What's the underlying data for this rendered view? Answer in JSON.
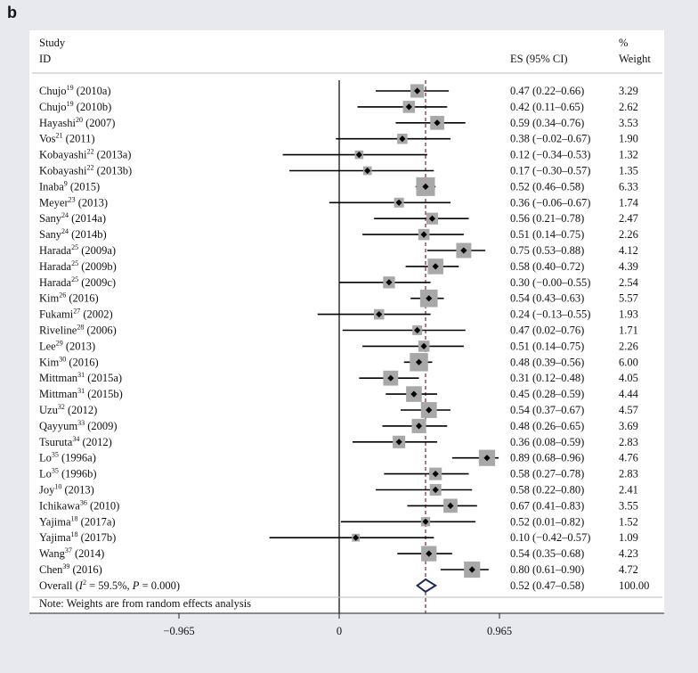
{
  "panel_label": "b",
  "chart_data": {
    "type": "forest",
    "header": {
      "study_line1": "Study",
      "study_line2": "ID",
      "es_label": "ES (95% CI)",
      "weight_line1": "%",
      "weight_line2": "Weight"
    },
    "studies": [
      {
        "name": "Chujo",
        "ref": "19",
        "year": " (2010a)",
        "es": 0.47,
        "lo": 0.22,
        "hi": 0.66,
        "es_text": "0.47 (0.22–0.66)",
        "weight": 3.29,
        "weight_text": "3.29"
      },
      {
        "name": "Chujo",
        "ref": "19",
        "year": " (2010b)",
        "es": 0.42,
        "lo": 0.11,
        "hi": 0.65,
        "es_text": "0.42 (0.11–0.65)",
        "weight": 2.62,
        "weight_text": "2.62"
      },
      {
        "name": "Hayashi",
        "ref": "20",
        "year": " (2007)",
        "es": 0.59,
        "lo": 0.34,
        "hi": 0.76,
        "es_text": "0.59 (0.34–0.76)",
        "weight": 3.53,
        "weight_text": "3.53"
      },
      {
        "name": "Vos",
        "ref": "21",
        "year": " (2011)",
        "es": 0.38,
        "lo": -0.02,
        "hi": 0.67,
        "es_text": "0.38 (−0.02–0.67)",
        "weight": 1.9,
        "weight_text": "1.90"
      },
      {
        "name": "Kobayashi",
        "ref": "22",
        "year": " (2013a)",
        "es": 0.12,
        "lo": -0.34,
        "hi": 0.53,
        "es_text": "0.12 (−0.34–0.53)",
        "weight": 1.32,
        "weight_text": "1.32"
      },
      {
        "name": "Kobayashi",
        "ref": "22",
        "year": " (2013b)",
        "es": 0.17,
        "lo": -0.3,
        "hi": 0.57,
        "es_text": "0.17 (−0.30–0.57)",
        "weight": 1.35,
        "weight_text": "1.35"
      },
      {
        "name": "Inaba",
        "ref": "9",
        "year": " (2015)",
        "es": 0.52,
        "lo": 0.46,
        "hi": 0.58,
        "es_text": "0.52 (0.46–0.58)",
        "weight": 6.33,
        "weight_text": "6.33"
      },
      {
        "name": "Meyer",
        "ref": "23",
        "year": " (2013)",
        "es": 0.36,
        "lo": -0.06,
        "hi": 0.67,
        "es_text": "0.36 (−0.06–0.67)",
        "weight": 1.74,
        "weight_text": "1.74"
      },
      {
        "name": "Sany",
        "ref": "24",
        "year": " (2014a)",
        "es": 0.56,
        "lo": 0.21,
        "hi": 0.78,
        "es_text": "0.56 (0.21–0.78)",
        "weight": 2.47,
        "weight_text": "2.47"
      },
      {
        "name": "Sany",
        "ref": "24",
        "year": " (2014b)",
        "es": 0.51,
        "lo": 0.14,
        "hi": 0.75,
        "es_text": "0.51 (0.14–0.75)",
        "weight": 2.26,
        "weight_text": "2.26"
      },
      {
        "name": "Harada",
        "ref": "25",
        "year": " (2009a)",
        "es": 0.75,
        "lo": 0.53,
        "hi": 0.88,
        "es_text": "0.75 (0.53–0.88)",
        "weight": 4.12,
        "weight_text": "4.12"
      },
      {
        "name": "Harada",
        "ref": "25",
        "year": " (2009b)",
        "es": 0.58,
        "lo": 0.4,
        "hi": 0.72,
        "es_text": "0.58 (0.40–0.72)",
        "weight": 4.39,
        "weight_text": "4.39"
      },
      {
        "name": "Harada",
        "ref": "25",
        "year": " (2009c)",
        "es": 0.3,
        "lo": 0.0,
        "hi": 0.55,
        "es_text": "0.30 (−0.00–0.55)",
        "weight": 2.54,
        "weight_text": "2.54"
      },
      {
        "name": "Kim",
        "ref": "26",
        "year": " (2016)",
        "es": 0.54,
        "lo": 0.43,
        "hi": 0.63,
        "es_text": "0.54 (0.43–0.63)",
        "weight": 5.57,
        "weight_text": "5.57"
      },
      {
        "name": "Fukami",
        "ref": "27",
        "year": " (2002)",
        "es": 0.24,
        "lo": -0.13,
        "hi": 0.55,
        "es_text": "0.24 (−0.13–0.55)",
        "weight": 1.93,
        "weight_text": "1.93"
      },
      {
        "name": "Riveline",
        "ref": "28",
        "year": " (2006)",
        "es": 0.47,
        "lo": 0.02,
        "hi": 0.76,
        "es_text": "0.47 (0.02–0.76)",
        "weight": 1.71,
        "weight_text": "1.71"
      },
      {
        "name": "Lee",
        "ref": "29",
        "year": " (2013)",
        "es": 0.51,
        "lo": 0.14,
        "hi": 0.75,
        "es_text": "0.51 (0.14–0.75)",
        "weight": 2.26,
        "weight_text": "2.26"
      },
      {
        "name": "Kim",
        "ref": "30",
        "year": " (2016)",
        "es": 0.48,
        "lo": 0.39,
        "hi": 0.56,
        "es_text": "0.48 (0.39–0.56)",
        "weight": 6.0,
        "weight_text": "6.00"
      },
      {
        "name": "Mittman",
        "ref": "31",
        "year": " (2015a)",
        "es": 0.31,
        "lo": 0.12,
        "hi": 0.48,
        "es_text": "0.31 (0.12–0.48)",
        "weight": 4.05,
        "weight_text": "4.05"
      },
      {
        "name": "Mittman",
        "ref": "31",
        "year": " (2015b)",
        "es": 0.45,
        "lo": 0.28,
        "hi": 0.59,
        "es_text": "0.45 (0.28–0.59)",
        "weight": 4.44,
        "weight_text": "4.44"
      },
      {
        "name": "Uzu",
        "ref": "32",
        "year": " (2012)",
        "es": 0.54,
        "lo": 0.37,
        "hi": 0.67,
        "es_text": "0.54 (0.37–0.67)",
        "weight": 4.57,
        "weight_text": "4.57"
      },
      {
        "name": "Qayyum",
        "ref": "33",
        "year": " (2009)",
        "es": 0.48,
        "lo": 0.26,
        "hi": 0.65,
        "es_text": "0.48 (0.26–0.65)",
        "weight": 3.69,
        "weight_text": "3.69"
      },
      {
        "name": "Tsuruta",
        "ref": "34",
        "year": " (2012)",
        "es": 0.36,
        "lo": 0.08,
        "hi": 0.59,
        "es_text": "0.36 (0.08–0.59)",
        "weight": 2.83,
        "weight_text": "2.83"
      },
      {
        "name": "Lo",
        "ref": "35",
        "year": " (1996a)",
        "es": 0.89,
        "lo": 0.68,
        "hi": 0.96,
        "es_text": "0.89 (0.68–0.96)",
        "weight": 4.76,
        "weight_text": "4.76"
      },
      {
        "name": "Lo",
        "ref": "35",
        "year": " (1996b)",
        "es": 0.58,
        "lo": 0.27,
        "hi": 0.78,
        "es_text": "0.58 (0.27–0.78)",
        "weight": 2.83,
        "weight_text": "2.83"
      },
      {
        "name": "Joy",
        "ref": "10",
        "year": " (2013)",
        "es": 0.58,
        "lo": 0.22,
        "hi": 0.8,
        "es_text": "0.58 (0.22–0.80)",
        "weight": 2.41,
        "weight_text": "2.41"
      },
      {
        "name": "Ichikawa",
        "ref": "36",
        "year": " (2010)",
        "es": 0.67,
        "lo": 0.41,
        "hi": 0.83,
        "es_text": "0.67 (0.41–0.83)",
        "weight": 3.55,
        "weight_text": "3.55"
      },
      {
        "name": "Yajima",
        "ref": "18",
        "year": " (2017a)",
        "es": 0.52,
        "lo": 0.01,
        "hi": 0.82,
        "es_text": "0.52 (0.01–0.82)",
        "weight": 1.52,
        "weight_text": "1.52"
      },
      {
        "name": "Yajima",
        "ref": "18",
        "year": " (2017b)",
        "es": 0.1,
        "lo": -0.42,
        "hi": 0.57,
        "es_text": "0.10 (−0.42–0.57)",
        "weight": 1.09,
        "weight_text": "1.09"
      },
      {
        "name": "Wang",
        "ref": "37",
        "year": " (2014)",
        "es": 0.54,
        "lo": 0.35,
        "hi": 0.68,
        "es_text": "0.54 (0.35–0.68)",
        "weight": 4.23,
        "weight_text": "4.23"
      },
      {
        "name": "Chen",
        "ref": "39",
        "year": " (2016)",
        "es": 0.8,
        "lo": 0.61,
        "hi": 0.9,
        "es_text": "0.80 (0.61–0.90)",
        "weight": 4.72,
        "weight_text": "4.72"
      }
    ],
    "overall": {
      "label_prefix": "Overall (",
      "i2_symbol": "I",
      "i2_exp": "2",
      "i2_mid": " = 59.5%, ",
      "p_symbol": "P",
      "p_rest": " = 0.000)",
      "es": 0.52,
      "lo": 0.47,
      "hi": 0.58,
      "es_text": "0.52 (0.47–0.58)",
      "weight_text": "100.00"
    },
    "note": "Note: Weights are from random effects analysis",
    "x_ticks": [
      {
        "value": -0.965,
        "label": "−0.965"
      },
      {
        "value": 0,
        "label": "0"
      },
      {
        "value": 0.965,
        "label": "0.965"
      }
    ],
    "x_range": [
      -0.965,
      0.965
    ],
    "null_line": 0,
    "colors": {
      "ci_line": "#000000",
      "weight_box": "#a8a8a8",
      "point": "#000000",
      "overall_diamond": "#1b2a5c",
      "overall_line": "#7a1f3d",
      "panel_bg": "#ffffff",
      "page_bg": "#e7e9ef"
    }
  }
}
